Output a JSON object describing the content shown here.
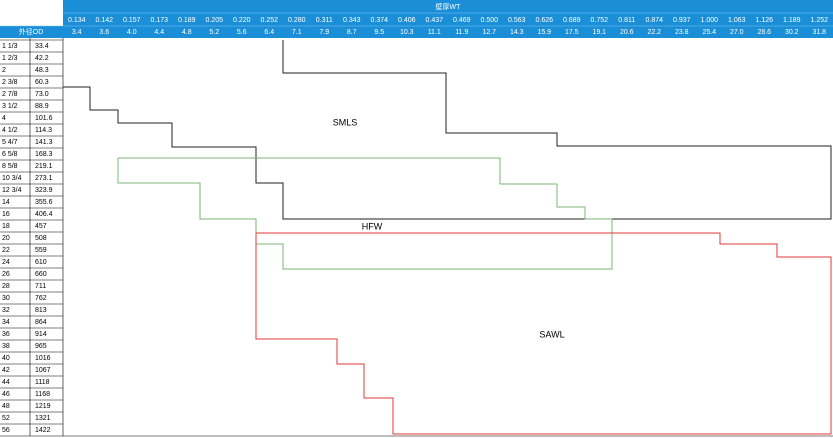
{
  "header": {
    "wt_label": "壁厚WT",
    "od_label": "外径OD",
    "wt_inch": [
      "0.134",
      "0.142",
      "0.157",
      "0.173",
      "0.189",
      "0.205",
      "0.220",
      "0.252",
      "0.280",
      "0.311",
      "0.343",
      "0.374",
      "0.406",
      "0.437",
      "0.469",
      "0.500",
      "0.563",
      "0.626",
      "0.689",
      "0.752",
      "0.811",
      "0.874",
      "0.937",
      "1.000",
      "1.063",
      "1.126",
      "1.189",
      "1.252"
    ],
    "wt_mm": [
      "3.4",
      "3.6",
      "4.0",
      "4.4",
      "4.8",
      "5.2",
      "5.6",
      "6.4",
      "7.1",
      "7.9",
      "8.7",
      "9.5",
      "10.3",
      "11.1",
      "11.9",
      "12.7",
      "14.3",
      "15.9",
      "17.5",
      "19.1",
      "20.6",
      "22.2",
      "23.8",
      "25.4",
      "27.0",
      "28.6",
      "30.2",
      "31.8"
    ]
  },
  "rows": [
    [
      "1 1/3",
      "33.4"
    ],
    [
      "1 2/3",
      "42.2"
    ],
    [
      "2",
      "48.3"
    ],
    [
      "2 3/8",
      "60.3"
    ],
    [
      "2 7/8",
      "73.0"
    ],
    [
      "3 1/2",
      "88.9"
    ],
    [
      "4",
      "101.6"
    ],
    [
      "4 1/2",
      "114.3"
    ],
    [
      "5 4/7",
      "141.3"
    ],
    [
      "6 5/8",
      "168.3"
    ],
    [
      "8 5/8",
      "219.1"
    ],
    [
      "10 3/4",
      "273.1"
    ],
    [
      "12 3/4",
      "323.9"
    ],
    [
      "14",
      "355.6"
    ],
    [
      "16",
      "406.4"
    ],
    [
      "18",
      "457"
    ],
    [
      "20",
      "508"
    ],
    [
      "22",
      "559"
    ],
    [
      "24",
      "610"
    ],
    [
      "26",
      "660"
    ],
    [
      "28",
      "711"
    ],
    [
      "30",
      "762"
    ],
    [
      "32",
      "813"
    ],
    [
      "34",
      "864"
    ],
    [
      "36",
      "914"
    ],
    [
      "38",
      "965"
    ],
    [
      "40",
      "1016"
    ],
    [
      "42",
      "1067"
    ],
    [
      "44",
      "1118"
    ],
    [
      "46",
      "1168"
    ],
    [
      "48",
      "1219"
    ],
    [
      "52",
      "1321"
    ],
    [
      "56",
      "1422"
    ]
  ],
  "regions": {
    "smls": "SMLS",
    "hfw": "HFW",
    "sawl": "SAWL"
  }
}
